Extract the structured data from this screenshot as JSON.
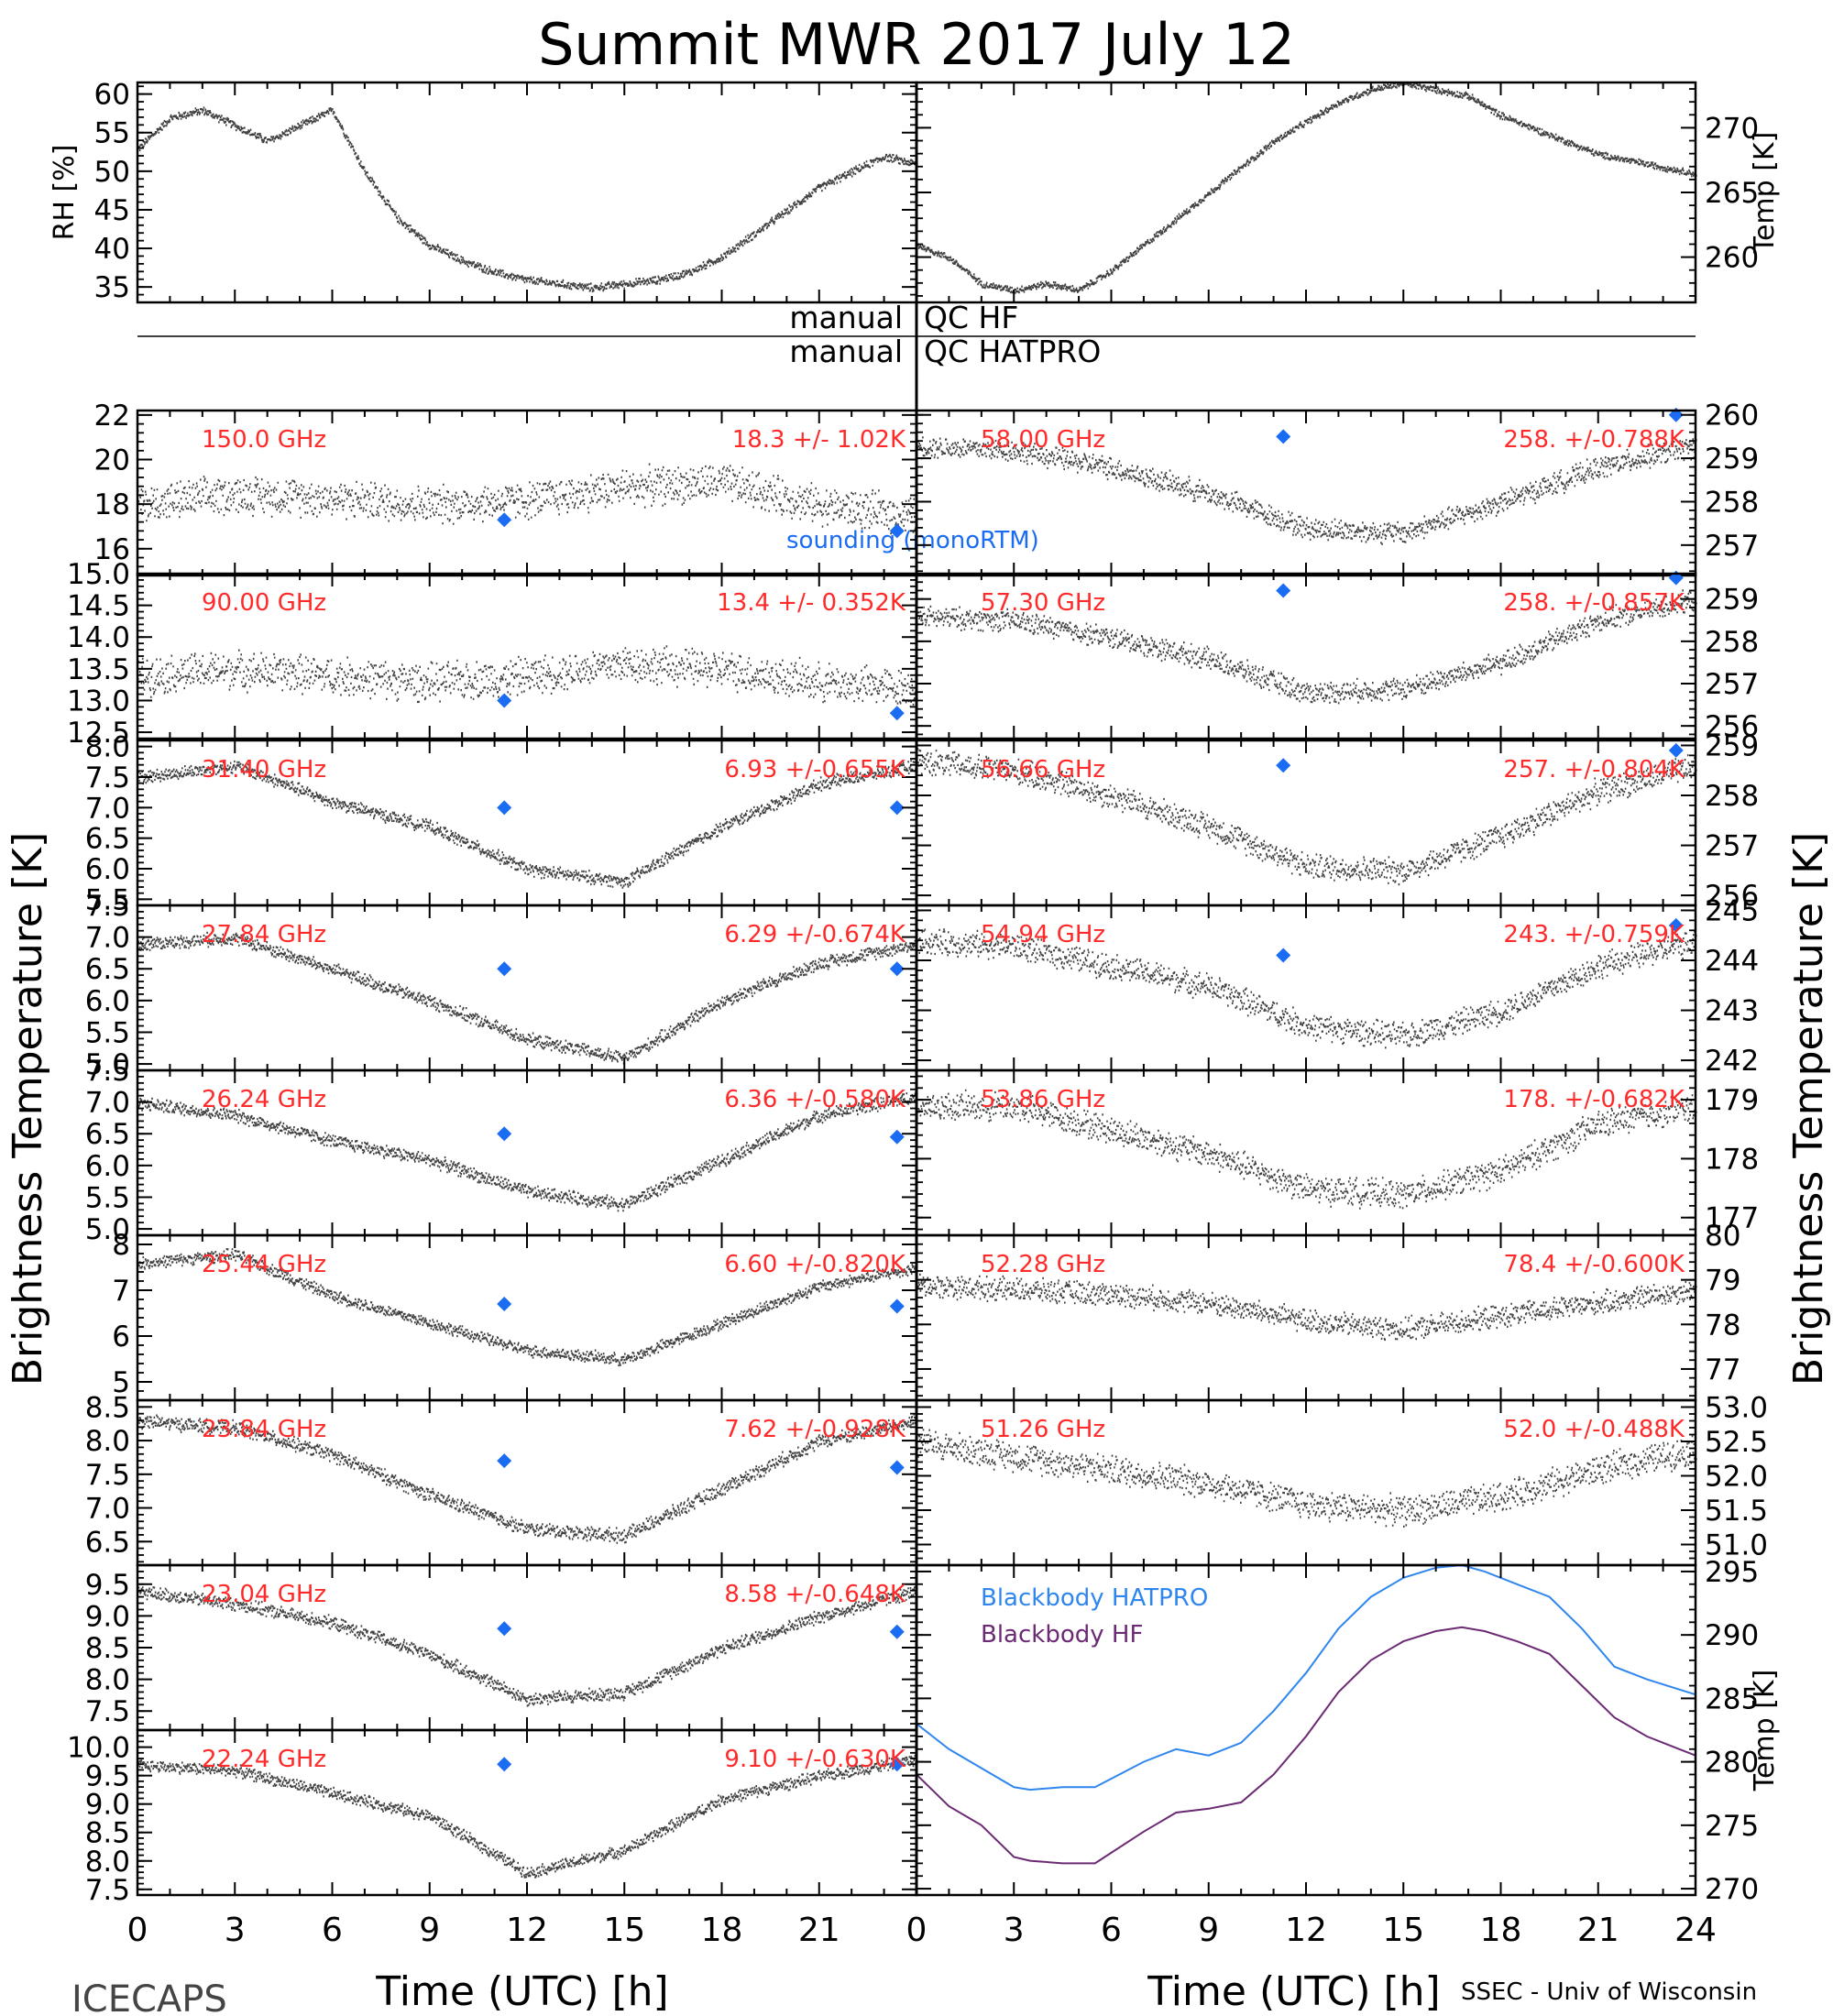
{
  "title": "Summit MWR 2017 July 12",
  "footer": {
    "left": "ICECAPS",
    "right": "SSEC - Univ of Wisconsin",
    "xlabel_left": "Time (UTC) [h]",
    "xlabel_right": "Time (UTC) [h]"
  },
  "qc": {
    "hf_left": "manual",
    "hf_right": "QC HF",
    "hatpro_left": "manual",
    "hatpro_right": "QC HATPRO"
  },
  "side_labels": {
    "left": "Brightness Temperature [K]",
    "right": "Brightness Temperature [K]"
  },
  "legend": {
    "sounding": "sounding (monoRTM)",
    "bb_hatpro": "Blackbody HATPRO",
    "bb_hf": "Blackbody HF"
  },
  "colors": {
    "data": "#000000",
    "label": "#ff2a2a",
    "sounding": "#1a6cf2",
    "bb_hatpro": "#2f86ef",
    "bb_hf": "#6b2a73"
  },
  "chart_data": [
    {
      "id": "met-rh",
      "type": "scatter",
      "ylabel": "RH [%]",
      "xlim": [
        0,
        24
      ],
      "ylim": [
        33,
        61.5
      ],
      "yticks": [
        35,
        40,
        45,
        50,
        55,
        60
      ],
      "x": [
        0,
        1,
        2,
        3,
        4,
        5,
        6,
        7,
        8,
        9,
        10,
        11,
        12,
        13,
        14,
        15,
        16,
        17,
        18,
        19,
        20,
        21,
        22,
        23,
        24
      ],
      "values": [
        53,
        57,
        58,
        56,
        54,
        56,
        58,
        50,
        44,
        40.5,
        38.5,
        37,
        36,
        35.5,
        35,
        35.5,
        36,
        37,
        39,
        42,
        45,
        48,
        50,
        52,
        51
      ],
      "noise": 0.6
    },
    {
      "id": "met-temp",
      "type": "scatter",
      "ylabel": "Temp [K]",
      "xlim": [
        0,
        24
      ],
      "ylim": [
        256.5,
        273.5
      ],
      "yticks": [
        260,
        265,
        270
      ],
      "x": [
        0,
        1,
        2,
        3,
        4,
        5,
        6,
        7,
        8,
        9,
        10,
        11,
        12,
        13,
        14,
        15,
        16,
        17,
        18,
        19,
        20,
        21,
        22,
        23,
        24
      ],
      "values": [
        261,
        260,
        258,
        257.5,
        258,
        257.5,
        259,
        261,
        263,
        265,
        267,
        269,
        270.5,
        272,
        273,
        273.5,
        273,
        272.5,
        271,
        270,
        269,
        268,
        267.5,
        267,
        266.5
      ],
      "noise": 0.3
    },
    {
      "id": "ch-150",
      "type": "scatter",
      "label": "150.0 GHz",
      "stats": "18.3 +/- 1.02K",
      "xlim": [
        0,
        24
      ],
      "ylim": [
        14.8,
        22.2
      ],
      "yticks": [
        16,
        18,
        20,
        22
      ],
      "x": [
        0,
        3,
        6,
        9,
        12,
        15,
        18,
        21,
        24
      ],
      "values": [
        18,
        18.5,
        18.3,
        18,
        18.2,
        18.8,
        19,
        18,
        17.5
      ],
      "noise": 1.0,
      "sounding": [
        {
          "x": 11.3,
          "y": 17.3
        },
        {
          "x": 23.4,
          "y": 16.8
        }
      ]
    },
    {
      "id": "ch-90",
      "type": "scatter",
      "label": "90.00 GHz",
      "stats": "13.4 +/- 0.352K",
      "xlim": [
        0,
        24
      ],
      "ylim": [
        12.4,
        15.0
      ],
      "yticks": [
        12.5,
        13.0,
        13.5,
        14.0,
        14.5,
        15.0
      ],
      "x": [
        0,
        3,
        6,
        9,
        12,
        15,
        18,
        21,
        24
      ],
      "values": [
        13.4,
        13.5,
        13.4,
        13.3,
        13.4,
        13.6,
        13.5,
        13.3,
        13.2
      ],
      "noise": 0.35,
      "sounding": [
        {
          "x": 11.3,
          "y": 13.0
        },
        {
          "x": 23.4,
          "y": 12.8
        }
      ]
    },
    {
      "id": "ch-3140",
      "type": "scatter",
      "label": "31.40 GHz",
      "stats": "6.93 +/-0.655K",
      "xlim": [
        0,
        24
      ],
      "ylim": [
        5.4,
        8.1
      ],
      "yticks": [
        5.5,
        6.0,
        6.5,
        7.0,
        7.5,
        8.0
      ],
      "x": [
        0,
        3,
        6,
        9,
        12,
        15,
        18,
        21,
        24
      ],
      "values": [
        7.5,
        7.7,
        7.1,
        6.7,
        6.0,
        5.8,
        6.7,
        7.4,
        7.7
      ],
      "noise": 0.12,
      "sounding": [
        {
          "x": 11.3,
          "y": 7.0
        },
        {
          "x": 23.4,
          "y": 7.0
        }
      ]
    },
    {
      "id": "ch-2784",
      "type": "scatter",
      "label": "27.84 GHz",
      "stats": "6.29 +/-0.674K",
      "xlim": [
        0,
        24
      ],
      "ylim": [
        4.9,
        7.5
      ],
      "yticks": [
        5.0,
        5.5,
        6.0,
        6.5,
        7.0,
        7.5
      ],
      "x": [
        0,
        3,
        6,
        9,
        12,
        15,
        18,
        21,
        24
      ],
      "values": [
        6.9,
        7.0,
        6.5,
        6.0,
        5.4,
        5.1,
        6.0,
        6.6,
        6.9
      ],
      "noise": 0.12,
      "sounding": [
        {
          "x": 11.3,
          "y": 6.5
        },
        {
          "x": 23.4,
          "y": 6.5
        }
      ]
    },
    {
      "id": "ch-2624",
      "type": "scatter",
      "label": "26.24 GHz",
      "stats": "6.36 +/-0.580K",
      "xlim": [
        0,
        24
      ],
      "ylim": [
        4.9,
        7.5
      ],
      "yticks": [
        5.0,
        5.5,
        6.0,
        6.5,
        7.0,
        7.5
      ],
      "x": [
        0,
        3,
        6,
        9,
        12,
        15,
        18,
        21,
        24
      ],
      "values": [
        7.0,
        6.8,
        6.4,
        6.1,
        5.6,
        5.4,
        6.1,
        6.8,
        7.1
      ],
      "noise": 0.12,
      "sounding": [
        {
          "x": 11.3,
          "y": 6.5
        },
        {
          "x": 23.4,
          "y": 6.45
        }
      ]
    },
    {
      "id": "ch-2544",
      "type": "scatter",
      "label": "25.44 GHz",
      "stats": "6.60 +/-0.820K",
      "xlim": [
        0,
        24
      ],
      "ylim": [
        4.6,
        8.2
      ],
      "yticks": [
        5,
        6,
        7,
        8
      ],
      "x": [
        0,
        3,
        6,
        9,
        12,
        15,
        18,
        21,
        24
      ],
      "values": [
        7.6,
        7.8,
        6.9,
        6.3,
        5.7,
        5.5,
        6.3,
        7.1,
        7.5
      ],
      "noise": 0.15,
      "sounding": [
        {
          "x": 11.3,
          "y": 6.7
        },
        {
          "x": 23.4,
          "y": 6.65
        }
      ]
    },
    {
      "id": "ch-2384",
      "type": "scatter",
      "label": "23.84 GHz",
      "stats": "7.62 +/-0.928K",
      "xlim": [
        0,
        24
      ],
      "ylim": [
        6.15,
        8.6
      ],
      "yticks": [
        6.5,
        7.0,
        7.5,
        8.0,
        8.5
      ],
      "x": [
        0,
        3,
        6,
        9,
        12,
        15,
        18,
        21,
        24
      ],
      "values": [
        8.3,
        8.2,
        7.8,
        7.2,
        6.7,
        6.6,
        7.3,
        8.0,
        8.3
      ],
      "noise": 0.12,
      "sounding": [
        {
          "x": 11.3,
          "y": 7.7
        },
        {
          "x": 23.4,
          "y": 7.6
        }
      ]
    },
    {
      "id": "ch-2304",
      "type": "scatter",
      "label": "23.04 GHz",
      "stats": "8.58 +/-0.648K",
      "xlim": [
        0,
        24
      ],
      "ylim": [
        7.2,
        9.8
      ],
      "yticks": [
        7.5,
        8.0,
        8.5,
        9.0,
        9.5
      ],
      "x": [
        0,
        3,
        6,
        9,
        12,
        15,
        18,
        21,
        24
      ],
      "values": [
        9.4,
        9.2,
        8.9,
        8.4,
        7.7,
        7.8,
        8.5,
        9.0,
        9.4
      ],
      "noise": 0.12,
      "sounding": [
        {
          "x": 11.3,
          "y": 8.8
        },
        {
          "x": 23.4,
          "y": 8.75
        }
      ]
    },
    {
      "id": "ch-2224",
      "type": "scatter",
      "label": "22.24 GHz",
      "stats": "9.10 +/-0.630K",
      "xlim": [
        0,
        24
      ],
      "ylim": [
        7.4,
        10.3
      ],
      "yticks": [
        7.5,
        8.0,
        8.5,
        9.0,
        9.5,
        10.0
      ],
      "x": [
        0,
        3,
        6,
        9,
        12,
        15,
        18,
        21,
        24
      ],
      "values": [
        9.7,
        9.6,
        9.2,
        8.8,
        7.8,
        8.2,
        9.1,
        9.5,
        9.8
      ],
      "noise": 0.12,
      "sounding": [
        {
          "x": 11.3,
          "y": 9.7
        },
        {
          "x": 23.4,
          "y": 9.7
        }
      ]
    },
    {
      "id": "ch-5800",
      "type": "scatter",
      "label": "58.00 GHz",
      "stats": "258. +/-0.788K",
      "xlim": [
        0,
        24
      ],
      "ylim": [
        256.3,
        260.1
      ],
      "yticks": [
        257,
        258,
        259,
        260
      ],
      "x": [
        0,
        3,
        6,
        9,
        12,
        15,
        18,
        21,
        24
      ],
      "values": [
        259.3,
        259.2,
        258.8,
        258.2,
        257.4,
        257.3,
        258.0,
        258.8,
        259.3
      ],
      "noise": 0.3,
      "sounding": [
        {
          "x": 11.3,
          "y": 259.5
        },
        {
          "x": 23.4,
          "y": 260.0
        }
      ]
    },
    {
      "id": "ch-5730",
      "type": "scatter",
      "label": "57.30 GHz",
      "stats": "258. +/-0.857K",
      "xlim": [
        0,
        24
      ],
      "ylim": [
        255.7,
        259.6
      ],
      "yticks": [
        256,
        257,
        258,
        259
      ],
      "x": [
        0,
        3,
        6,
        9,
        12,
        15,
        18,
        21,
        24
      ],
      "values": [
        258.6,
        258.5,
        258.1,
        257.6,
        256.8,
        256.9,
        257.5,
        258.5,
        259.0
      ],
      "noise": 0.3,
      "sounding": [
        {
          "x": 11.3,
          "y": 259.2
        },
        {
          "x": 23.4,
          "y": 259.5
        }
      ]
    },
    {
      "id": "ch-5666",
      "type": "scatter",
      "label": "56.66 GHz",
      "stats": "257. +/-0.804K",
      "xlim": [
        0,
        24
      ],
      "ylim": [
        255.8,
        259.1
      ],
      "yticks": [
        256,
        257,
        258,
        259
      ],
      "x": [
        0,
        3,
        6,
        9,
        12,
        15,
        18,
        21,
        24
      ],
      "values": [
        258.7,
        258.5,
        258.0,
        257.4,
        256.6,
        256.5,
        257.2,
        258.1,
        258.6
      ],
      "noise": 0.3,
      "sounding": [
        {
          "x": 11.3,
          "y": 258.6
        },
        {
          "x": 23.4,
          "y": 258.9
        }
      ]
    },
    {
      "id": "ch-5494",
      "type": "scatter",
      "label": "54.94 GHz",
      "stats": "243. +/-0.759K",
      "xlim": [
        0,
        24
      ],
      "ylim": [
        241.8,
        245.1
      ],
      "yticks": [
        242,
        243,
        244,
        245
      ],
      "x": [
        0,
        3,
        6,
        9,
        12,
        15,
        18,
        21,
        24
      ],
      "values": [
        244.4,
        244.3,
        243.9,
        243.5,
        242.7,
        242.5,
        243.0,
        243.9,
        244.4
      ],
      "noise": 0.3,
      "sounding": [
        {
          "x": 11.3,
          "y": 244.1
        },
        {
          "x": 23.4,
          "y": 244.7
        }
      ]
    },
    {
      "id": "ch-5386",
      "type": "scatter",
      "label": "53.86 GHz",
      "stats": "178. +/-0.682K",
      "xlim": [
        0,
        24
      ],
      "ylim": [
        176.7,
        179.5
      ],
      "yticks": [
        177,
        178,
        179
      ],
      "x": [
        0,
        3,
        6,
        9,
        12,
        15,
        18,
        21,
        24
      ],
      "values": [
        178.9,
        178.9,
        178.5,
        178.1,
        177.5,
        177.4,
        177.8,
        178.6,
        178.9
      ],
      "noise": 0.28
    },
    {
      "id": "ch-5228",
      "type": "scatter",
      "label": "52.28 GHz",
      "stats": "78.4 +/-0.600K",
      "xlim": [
        0,
        24
      ],
      "ylim": [
        76.3,
        80.0
      ],
      "yticks": [
        77,
        78,
        79,
        80
      ],
      "x": [
        0,
        3,
        6,
        9,
        12,
        15,
        18,
        21,
        24
      ],
      "values": [
        78.9,
        78.8,
        78.7,
        78.5,
        78.1,
        77.9,
        78.2,
        78.5,
        78.8
      ],
      "noise": 0.3
    },
    {
      "id": "ch-5126",
      "type": "scatter",
      "label": "51.26 GHz",
      "stats": "52.0 +/-0.488K",
      "xlim": [
        0,
        24
      ],
      "ylim": [
        50.7,
        53.1
      ],
      "yticks": [
        51.0,
        51.5,
        52.0,
        52.5,
        53.0
      ],
      "x": [
        0,
        3,
        6,
        9,
        12,
        15,
        18,
        21,
        24
      ],
      "values": [
        52.5,
        52.3,
        52.1,
        51.9,
        51.6,
        51.5,
        51.7,
        52.1,
        52.4
      ],
      "noise": 0.25
    },
    {
      "id": "blackbody",
      "type": "line",
      "ylabel": "Temp [K]",
      "xlim": [
        0,
        24
      ],
      "ylim": [
        269.5,
        295.5
      ],
      "yticks": [
        270,
        275,
        280,
        285,
        290,
        295
      ],
      "x": [
        0,
        1,
        2,
        3,
        3.5,
        4.5,
        5.5,
        7,
        8,
        9,
        10,
        11,
        12,
        13,
        14,
        15,
        16,
        16.8,
        17.5,
        18.5,
        19.5,
        20.5,
        21.5,
        22.5,
        23.5,
        24
      ],
      "series": [
        {
          "name": "Blackbody HATPRO",
          "values": [
            283,
            281,
            279.5,
            278,
            277.8,
            278,
            278,
            280,
            281,
            280.5,
            281.5,
            284,
            287,
            290.5,
            293,
            294.5,
            295.3,
            295.5,
            295,
            294,
            293,
            290.5,
            287.5,
            286.5,
            285.7,
            285.3
          ]
        },
        {
          "name": "Blackbody HF",
          "values": [
            279,
            276.5,
            275,
            272.5,
            272.2,
            272,
            272,
            274.5,
            276,
            276.3,
            276.8,
            279,
            282,
            285.5,
            288,
            289.5,
            290.3,
            290.6,
            290.3,
            289.5,
            288.5,
            286,
            283.5,
            282,
            281,
            280.5
          ]
        }
      ]
    }
  ],
  "xaxis": {
    "ticks": [
      "0",
      "3",
      "6",
      "9",
      "12",
      "15",
      "18",
      "21",
      "24"
    ],
    "tick_labels_left": [
      "0",
      "3",
      "6",
      "9",
      "12",
      "15",
      "18",
      "21"
    ]
  }
}
